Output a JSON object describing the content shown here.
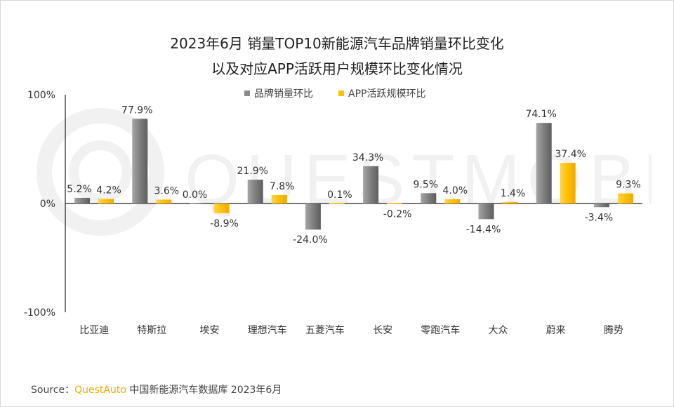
{
  "chart_data": {
    "type": "bar",
    "title": "2023年6月 销量TOP10新能源汽车品牌销量环比变化",
    "subtitle": "以及对应APP活跃用户规模环比变化情况",
    "categories": [
      "比亚迪",
      "特斯拉",
      "埃安",
      "理想汽车",
      "五菱汽车",
      "长安",
      "零跑汽车",
      "大众",
      "蔚来",
      "腾势"
    ],
    "series": [
      {
        "name": "品牌销量环比",
        "color": "#8c8c8c",
        "values": [
          5.2,
          77.9,
          0.0,
          21.9,
          -24.0,
          34.3,
          9.5,
          -14.4,
          74.1,
          -3.4
        ],
        "labels": [
          "5.2%",
          "77.9%",
          "0.0%",
          "21.9%",
          "-24.0%",
          "34.3%",
          "9.5%",
          "-14.4%",
          "74.1%",
          "-3.4%"
        ]
      },
      {
        "name": "APP活跃规模环比",
        "color": "#ffc000",
        "values": [
          4.2,
          3.6,
          -8.9,
          7.8,
          0.1,
          -0.2,
          4.0,
          1.4,
          37.4,
          9.3
        ],
        "labels": [
          "4.2%",
          "3.6%",
          "-8.9%",
          "7.8%",
          "0.1%",
          "-0.2%",
          "4.0%",
          "1.4%",
          "37.4%",
          "9.3%"
        ]
      }
    ],
    "ylim": [
      -100,
      100
    ],
    "yticks": [
      100,
      0,
      -100
    ],
    "ytick_labels": [
      "100%",
      "0%",
      "-100%"
    ],
    "legend_position": "top-center",
    "grid": false
  },
  "watermark": "QUESTMOBILE",
  "source": {
    "prefix": "Source：",
    "brand": "QuestAuto",
    "text": "中国新能源汽车数据库 2023年6月"
  }
}
